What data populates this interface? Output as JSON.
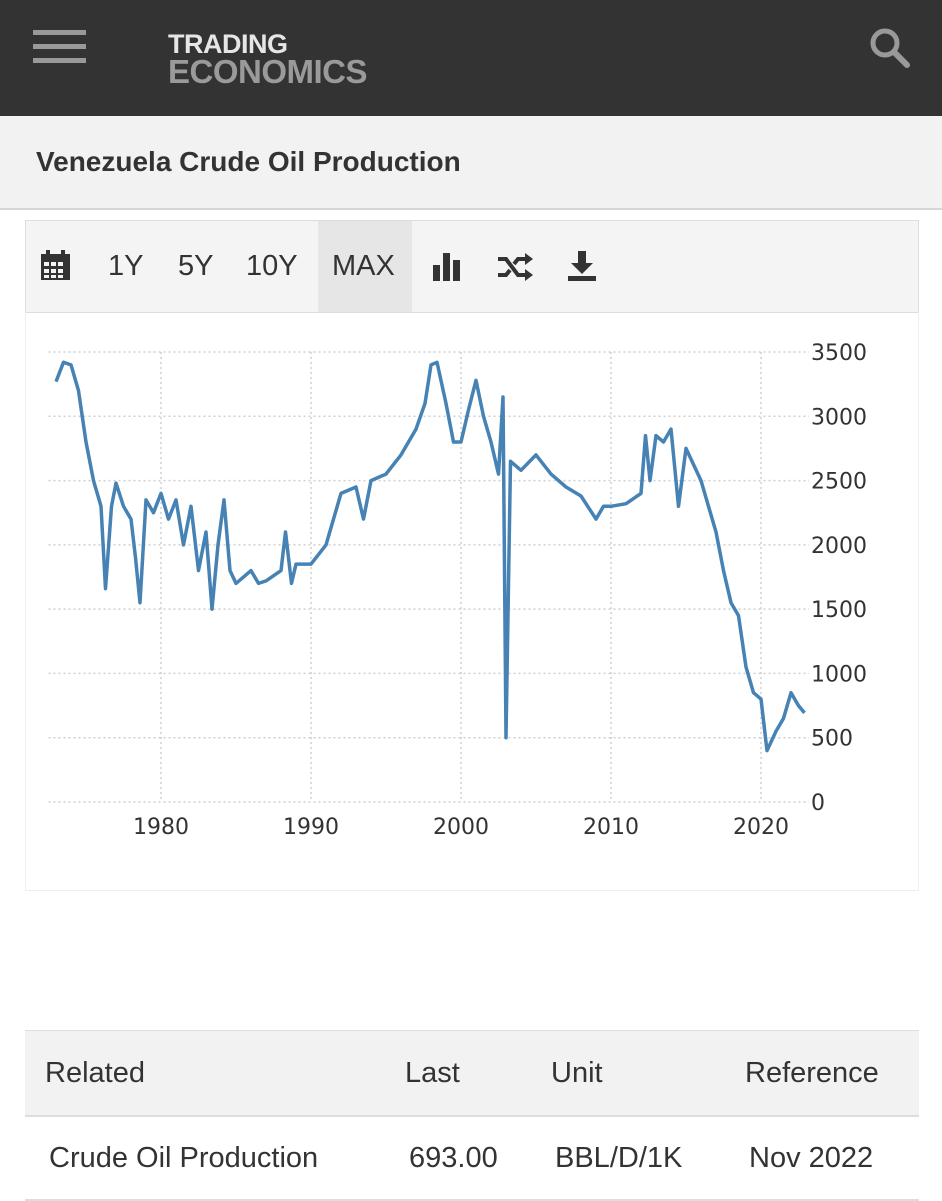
{
  "header": {
    "brand_line1": "TRADING",
    "brand_line2": "ECONOMICS"
  },
  "page_title": "Venezuela Crude Oil Production",
  "toolbar": {
    "ranges": [
      "1Y",
      "5Y",
      "10Y",
      "MAX"
    ]
  },
  "chart_data": {
    "type": "line",
    "color": "#4682b4",
    "grid": true,
    "x": [
      1973.0,
      1973.5,
      1974.0,
      1974.5,
      1975.0,
      1975.5,
      1976.0,
      1976.3,
      1976.7,
      1977.0,
      1977.5,
      1978.0,
      1978.3,
      1978.6,
      1979.0,
      1979.5,
      1980.0,
      1980.5,
      1981.0,
      1981.5,
      1982.0,
      1982.5,
      1983.0,
      1983.4,
      1983.8,
      1984.2,
      1984.6,
      1985.0,
      1986.0,
      1986.5,
      1987.0,
      1988.0,
      1988.3,
      1988.7,
      1989.0,
      1990.0,
      1991.0,
      1991.5,
      1992.0,
      1993.0,
      1993.5,
      1994.0,
      1995.0,
      1996.0,
      1997.0,
      1997.6,
      1998.0,
      1998.4,
      1999.0,
      1999.5,
      2000.0,
      2000.5,
      2001.0,
      2001.5,
      2002.0,
      2002.5,
      2002.8,
      2003.0,
      2003.3,
      2004.0,
      2005.0,
      2006.0,
      2007.0,
      2008.0,
      2009.0,
      2009.5,
      2010.0,
      2011.0,
      2012.0,
      2012.3,
      2012.6,
      2013.0,
      2013.5,
      2014.0,
      2014.5,
      2015.0,
      2016.0,
      2017.0,
      2017.5,
      2018.0,
      2018.5,
      2019.0,
      2019.5,
      2020.0,
      2020.4,
      2021.0,
      2021.5,
      2022.0,
      2022.5,
      2022.9
    ],
    "values": [
      3270,
      3420,
      3400,
      3200,
      2800,
      2500,
      2300,
      1660,
      2300,
      2480,
      2300,
      2200,
      1900,
      1550,
      2350,
      2250,
      2400,
      2200,
      2350,
      2000,
      2300,
      1800,
      2100,
      1500,
      2000,
      2350,
      1800,
      1700,
      1800,
      1700,
      1720,
      1800,
      2100,
      1700,
      1850,
      1850,
      2000,
      2200,
      2400,
      2450,
      2200,
      2500,
      2550,
      2700,
      2900,
      3100,
      3400,
      3420,
      3100,
      2800,
      2800,
      3050,
      3280,
      3000,
      2800,
      2550,
      3150,
      500,
      2650,
      2580,
      2700,
      2550,
      2450,
      2380,
      2200,
      2300,
      2300,
      2320,
      2400,
      2850,
      2500,
      2850,
      2800,
      2900,
      2300,
      2750,
      2500,
      2100,
      1800,
      1550,
      1450,
      1050,
      850,
      800,
      400,
      550,
      650,
      850,
      750,
      693
    ],
    "xlim": [
      1972.5,
      2023.2
    ],
    "xticks": [
      1980,
      1990,
      2000,
      2010,
      2020
    ],
    "ylim": [
      0,
      3500
    ],
    "yticks": [
      0,
      500,
      1000,
      1500,
      2000,
      2500,
      3000,
      3500
    ]
  },
  "table": {
    "columns": [
      "Related",
      "Last",
      "Unit",
      "Reference"
    ],
    "rows": [
      [
        "Crude Oil Production",
        "693.00",
        "BBL/D/1K",
        "Nov 2022"
      ]
    ]
  }
}
